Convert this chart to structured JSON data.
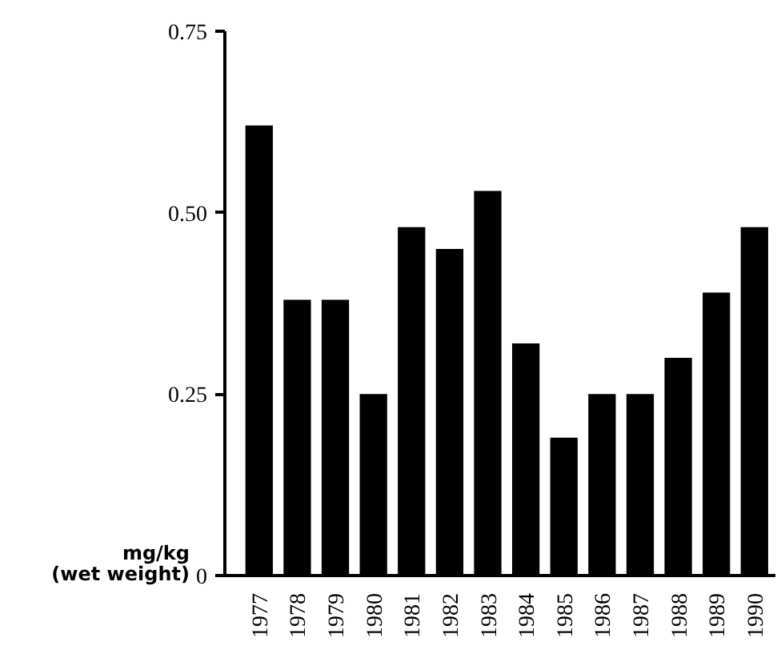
{
  "chart_data": {
    "type": "bar",
    "ylabel": "mg/kg\n(wet weight)",
    "categories": [
      "1977",
      "1978",
      "1979",
      "1980",
      "1981",
      "1982",
      "1983",
      "1984",
      "1985",
      "1986",
      "1987",
      "1988",
      "1989",
      "1990"
    ],
    "values": [
      0.62,
      0.38,
      0.38,
      0.25,
      0.48,
      0.45,
      0.53,
      0.32,
      0.19,
      0.25,
      0.25,
      0.3,
      0.39,
      0.48
    ],
    "color": "#000000",
    "ylim": [
      0,
      0.75
    ],
    "yticks": [
      {
        "value": 0,
        "label": "0"
      },
      0.25,
      {
        "value": 0.5,
        "label": "0.50"
      },
      0.75
    ],
    "grid": false
  }
}
